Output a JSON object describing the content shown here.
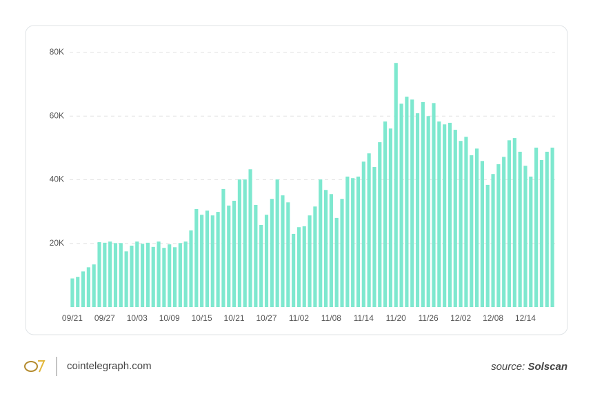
{
  "chart_data": {
    "type": "bar",
    "categories": [
      "09/21",
      null,
      null,
      null,
      null,
      null,
      "09/27",
      null,
      null,
      null,
      null,
      null,
      "10/03",
      null,
      null,
      null,
      null,
      null,
      "10/09",
      null,
      null,
      null,
      null,
      null,
      "10/15",
      null,
      null,
      null,
      null,
      null,
      "10/21",
      null,
      null,
      null,
      null,
      null,
      "10/27",
      null,
      null,
      null,
      null,
      null,
      "11/02",
      null,
      null,
      null,
      null,
      null,
      "11/08",
      null,
      null,
      null,
      null,
      null,
      "11/14",
      null,
      null,
      null,
      null,
      null,
      "11/20",
      null,
      null,
      null,
      null,
      null,
      "11/26",
      null,
      null,
      null,
      null,
      null,
      "12/02",
      null,
      null,
      null,
      null,
      null,
      "12/08",
      null,
      null,
      null,
      null,
      null,
      "12/14",
      null,
      null,
      null,
      null,
      null
    ],
    "values": [
      9000,
      9500,
      11200,
      12500,
      13400,
      20400,
      20200,
      20600,
      20100,
      20100,
      17500,
      19300,
      20600,
      19900,
      20200,
      18900,
      20600,
      18600,
      19700,
      18800,
      20100,
      20600,
      24100,
      30800,
      29000,
      30300,
      28800,
      29900,
      37100,
      31900,
      33400,
      40100,
      40100,
      43300,
      32100,
      25800,
      29000,
      34000,
      40100,
      35100,
      32900,
      23000,
      25100,
      25400,
      28800,
      31600,
      40100,
      36800,
      35500,
      28000,
      34000,
      41000,
      40500,
      41000,
      45700,
      48300,
      44000,
      51800,
      58300,
      56100,
      76700,
      63900,
      66100,
      65200,
      60900,
      64400,
      60000,
      64100,
      58300,
      57400,
      57900,
      55700,
      52200,
      53500,
      47700,
      49800,
      45900,
      38400,
      41800,
      44900,
      47200,
      52400,
      53100,
      48800,
      44400,
      41000,
      50100,
      46200,
      48800,
      50100
    ],
    "color": "#7ee8cf",
    "ylim": [
      0,
      80000
    ],
    "yticks": [
      {
        "value": 20000,
        "label": "20K"
      },
      {
        "value": 40000,
        "label": "40K"
      },
      {
        "value": 60000,
        "label": "60K"
      },
      {
        "value": 80000,
        "label": "80K"
      }
    ],
    "grid": true
  },
  "footer": {
    "site": "cointelegraph.com",
    "source_prefix": "source:",
    "source_name": "Solscan"
  }
}
